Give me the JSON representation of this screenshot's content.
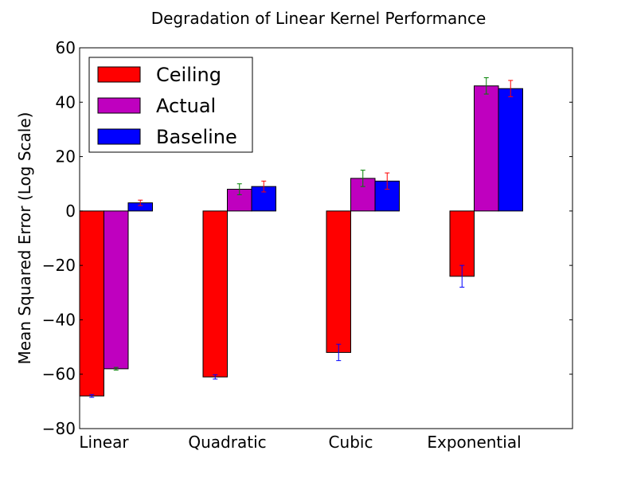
{
  "chart_data": {
    "type": "bar",
    "title": "Degradation of Linear Kernel Performance",
    "xlabel": "",
    "ylabel": "Mean Squared Error (Log Scale)",
    "categories": [
      "Linear",
      "Quadratic",
      "Cubic",
      "Exponential"
    ],
    "ylim": [
      -80,
      60
    ],
    "yticks": [
      -80,
      -60,
      -40,
      -20,
      0,
      20,
      40,
      60
    ],
    "ytick_labels": [
      "−80",
      "−60",
      "−40",
      "−20",
      "0",
      "20",
      "40",
      "60"
    ],
    "grid": false,
    "legend_position": "top-left",
    "series": [
      {
        "name": "Ceiling",
        "color": "#ff0000",
        "error_color": "#0000ff",
        "values": [
          -68,
          -61,
          -52,
          -24
        ],
        "errors": [
          0.5,
          0.8,
          3,
          4
        ]
      },
      {
        "name": "Actual",
        "color": "#bf00bf",
        "error_color": "#008000",
        "values": [
          -58,
          8,
          12,
          46
        ],
        "errors": [
          0.5,
          2,
          3,
          3
        ]
      },
      {
        "name": "Baseline",
        "color": "#0000ff",
        "error_color": "#ff0000",
        "values": [
          3,
          9,
          11,
          45
        ],
        "errors": [
          1,
          2,
          3,
          3
        ]
      }
    ]
  }
}
